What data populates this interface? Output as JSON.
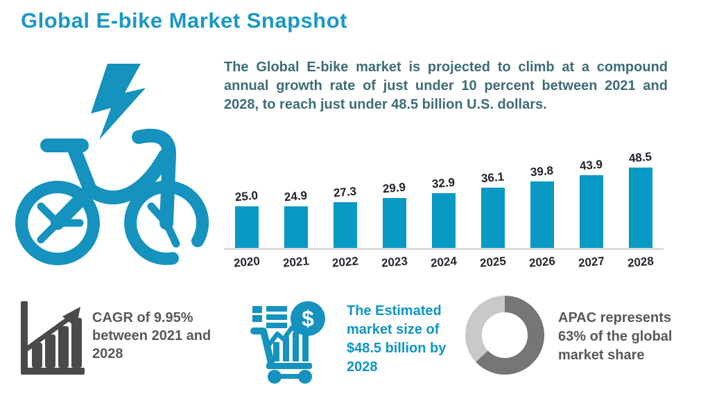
{
  "title": "Global E-bike Market Snapshot",
  "intro": "The Global E-bike market is projected to climb at a compound annual growth rate of just under 10 percent between 2021 and 2028, to reach just under 48.5 billion U.S. dollars.",
  "chart_data": {
    "type": "bar",
    "categories": [
      "2020",
      "2021",
      "2022",
      "2023",
      "2024",
      "2025",
      "2026",
      "2027",
      "2028"
    ],
    "values": [
      25.0,
      24.9,
      27.3,
      29.9,
      32.9,
      36.1,
      39.8,
      43.9,
      48.5
    ],
    "value_labels": [
      "25.0",
      "24.9",
      "27.3",
      "29.9",
      "32.9",
      "36.1",
      "39.8",
      "43.9",
      "48.5"
    ],
    "title": "",
    "xlabel": "",
    "ylabel": "",
    "ylim": [
      0,
      50
    ],
    "grid": false,
    "legend": "none",
    "bar_color": "#0899c4",
    "label_color": "#21212b",
    "axis_line_color": "#d9d9d9"
  },
  "stats": {
    "cagr": {
      "icon": "growth-bar-chart-icon",
      "text": "CAGR of 9.95%\nbetween 2021 and\n2028"
    },
    "market_size": {
      "icon": "shopping-cart-dollar-icon",
      "text": "The Estimated\nmarket size of\n$48.5 billion by\n2028"
    },
    "apac": {
      "icon": "donut-chart-icon",
      "text": "APAC represents\n63% of the global\nmarket share",
      "share_pct": 63
    }
  },
  "colors": {
    "teal": "#1592bd",
    "bar_teal": "#0899c4",
    "title_teal": "#1b98c2",
    "intro_text": "#3e6b78",
    "gray_text": "#58585a",
    "icon_gray": "#4a4a4a",
    "donut_dark": "#767676",
    "donut_light": "#c9c9c9"
  }
}
